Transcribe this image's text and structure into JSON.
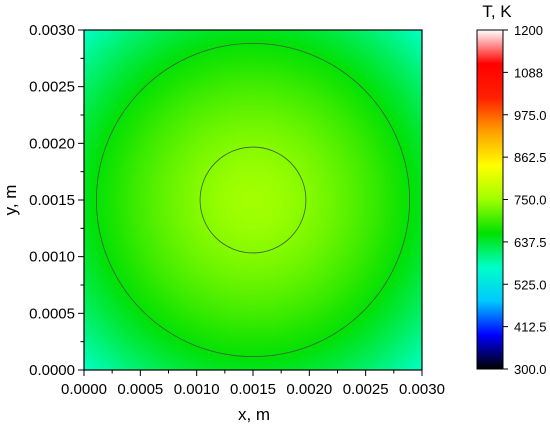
{
  "chart_data": {
    "type": "heatmap",
    "title": "",
    "xlabel": "x, m",
    "ylabel": "y, m",
    "xlim": [
      0.0,
      0.003
    ],
    "ylim": [
      0.0,
      0.003
    ],
    "x_ticks": [
      "0.0000",
      "0.0005",
      "0.0010",
      "0.0015",
      "0.0020",
      "0.0025",
      "0.0030"
    ],
    "y_ticks": [
      "0.0000",
      "0.0005",
      "0.0010",
      "0.0015",
      "0.0020",
      "0.0025",
      "0.0030"
    ],
    "colorbar": {
      "label": "T, K",
      "range": [
        300.0,
        1200.0
      ],
      "ticks": [
        "300.0",
        "412.5",
        "525.0",
        "637.5",
        "750.0",
        "862.5",
        "975.0",
        "1088",
        "1200"
      ],
      "colors": [
        "#000000",
        "#0000ff",
        "#00c8ff",
        "#00ffc8",
        "#00e000",
        "#a0ff00",
        "#ffff00",
        "#ffa000",
        "#ff2000",
        "#ff0000",
        "#ffffff"
      ]
    },
    "field": {
      "center_x": 0.0015,
      "center_y": 0.0015,
      "center_temperature": 752,
      "corner_temperature": 570,
      "contour_radii": [
        0.00047,
        0.00139
      ]
    }
  }
}
